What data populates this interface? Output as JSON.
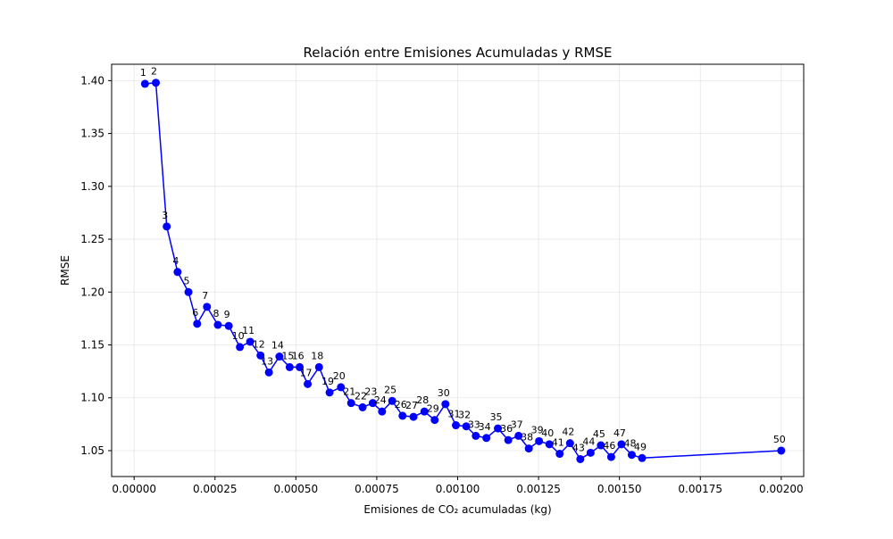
{
  "chart_data": {
    "type": "line",
    "title": "Relación entre Emisiones Acumuladas y RMSE",
    "xlabel": "Emisiones de CO₂ acumuladas (kg)",
    "ylabel": "RMSE",
    "xlim": [
      -6.95e-05,
      0.0020695
    ],
    "ylim": [
      1.0255,
      1.4155
    ],
    "x_ticks": [
      0.0,
      0.00025,
      0.0005,
      0.00075,
      0.001,
      0.00125,
      0.0015,
      0.00175,
      0.002
    ],
    "x_tick_labels": [
      "0.00000",
      "0.00025",
      "0.00050",
      "0.00075",
      "0.00100",
      "0.00125",
      "0.00150",
      "0.00175",
      "0.00200"
    ],
    "y_ticks": [
      1.05,
      1.1,
      1.15,
      1.2,
      1.25,
      1.3,
      1.35,
      1.4
    ],
    "y_tick_labels": [
      "1.05",
      "1.10",
      "1.15",
      "1.20",
      "1.25",
      "1.30",
      "1.35",
      "1.40"
    ],
    "grid": true,
    "color": "#0000ff",
    "series": [
      {
        "x": [
          3.36e-05,
          6.72e-05,
          0.0001008,
          0.0001344,
          0.000168,
          0.0001948,
          0.0002252,
          0.0002588,
          0.0002924,
          0.0003269,
          0.0003587,
          0.0003907,
          0.0004166,
          0.000449,
          0.0004808,
          0.0005117,
          0.0005365,
          0.0005716,
          0.0006041,
          0.0006392,
          0.0006708,
          0.0007062,
          0.0007376,
          0.0007663,
          0.0007976,
          0.0008296,
          0.0008635,
          0.0008972,
          0.000929,
          0.0009622,
          0.0009946,
          0.0010265,
          0.0010561,
          0.0010888,
          0.0011244,
          0.0011564,
          0.0011882,
          0.0012199,
          0.0012516,
          0.0012835,
          0.0013153,
          0.0013473,
          0.0013791,
          0.0014109,
          0.0014427,
          0.0014745,
          0.0015063,
          0.0015381,
          0.0015699,
          0.002
        ],
        "y": [
          1.397,
          1.398,
          1.262,
          1.219,
          1.2,
          1.17,
          1.186,
          1.169,
          1.168,
          1.148,
          1.153,
          1.14,
          1.124,
          1.139,
          1.129,
          1.129,
          1.113,
          1.129,
          1.105,
          1.11,
          1.095,
          1.091,
          1.095,
          1.087,
          1.097,
          1.083,
          1.082,
          1.087,
          1.079,
          1.094,
          1.074,
          1.073,
          1.064,
          1.062,
          1.071,
          1.06,
          1.064,
          1.052,
          1.059,
          1.056,
          1.047,
          1.057,
          1.042,
          1.048,
          1.055,
          1.044,
          1.056,
          1.046,
          1.043,
          1.05
        ],
        "labels": [
          "1",
          "2",
          "3",
          "4",
          "5",
          "6",
          "7",
          "8",
          "9",
          "10",
          "11",
          "12",
          "13",
          "14",
          "15",
          "16",
          "17",
          "18",
          "19",
          "20",
          "21",
          "22",
          "23",
          "24",
          "25",
          "26",
          "27",
          "28",
          "29",
          "30",
          "31",
          "32",
          "33",
          "34",
          "35",
          "36",
          "37",
          "38",
          "39",
          "40",
          "41",
          "42",
          "43",
          "44",
          "45",
          "46",
          "47",
          "48",
          "49",
          "50"
        ]
      }
    ]
  }
}
